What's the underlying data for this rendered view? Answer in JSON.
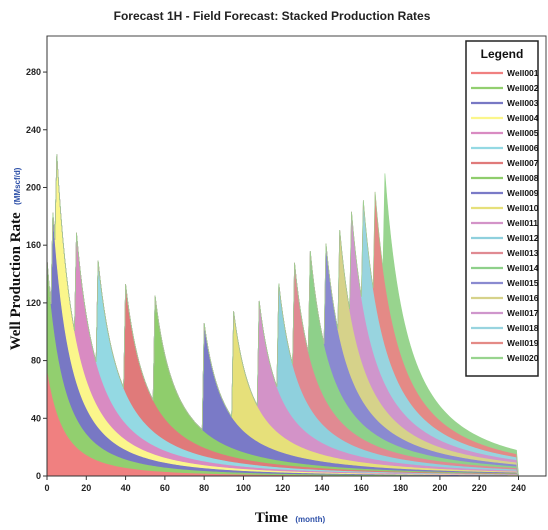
{
  "chart_data": {
    "type": "area",
    "stacked": true,
    "title": "Forecast 1H - Field Forecast: Stacked Production Rates",
    "xlabel": "Time",
    "xlabel_unit": "(month)",
    "ylabel": "Well Production Rate",
    "ylabel_unit": "(MMscf/d)",
    "xlim": [
      0,
      254
    ],
    "ylim": [
      0,
      305
    ],
    "xticks": [
      "0",
      "20",
      "40",
      "60",
      "80",
      "100",
      "120",
      "140",
      "160",
      "180",
      "200",
      "220",
      "240"
    ],
    "yticks": [
      "0",
      "40",
      "80",
      "120",
      "160",
      "200",
      "240",
      "280"
    ],
    "legend": {
      "title": "Legend",
      "position": "top-right"
    },
    "profile": {
      "peak": 75,
      "decline_per_month": 0.12,
      "hyperbolic_b": 0.45
    },
    "series": [
      {
        "name": "Well001",
        "start": 0,
        "end": 240,
        "color": "#f08080"
      },
      {
        "name": "Well002",
        "start": 0,
        "end": 240,
        "color": "#92cf6f"
      },
      {
        "name": "Well003",
        "start": 3,
        "end": 240,
        "color": "#7878c4"
      },
      {
        "name": "Well004",
        "start": 5,
        "end": 240,
        "color": "#fbf68b"
      },
      {
        "name": "Well005",
        "start": 15,
        "end": 240,
        "color": "#d98bc2"
      },
      {
        "name": "Well006",
        "start": 26,
        "end": 240,
        "color": "#94d9e3"
      },
      {
        "name": "Well007",
        "start": 40,
        "end": 240,
        "color": "#e07a7a"
      },
      {
        "name": "Well008",
        "start": 55,
        "end": 240,
        "color": "#8fcd6c"
      },
      {
        "name": "Well009",
        "start": 80,
        "end": 240,
        "color": "#7a7ac7"
      },
      {
        "name": "Well010",
        "start": 95,
        "end": 240,
        "color": "#e6e07a"
      },
      {
        "name": "Well011",
        "start": 108,
        "end": 240,
        "color": "#d393c8"
      },
      {
        "name": "Well012",
        "start": 118,
        "end": 240,
        "color": "#8fd0dd"
      },
      {
        "name": "Well013",
        "start": 126,
        "end": 240,
        "color": "#e08a92"
      },
      {
        "name": "Well014",
        "start": 134,
        "end": 240,
        "color": "#8ed08a"
      },
      {
        "name": "Well015",
        "start": 142,
        "end": 240,
        "color": "#8a8ad0"
      },
      {
        "name": "Well016",
        "start": 149,
        "end": 240,
        "color": "#d6d28a"
      },
      {
        "name": "Well017",
        "start": 155,
        "end": 240,
        "color": "#cf96cc"
      },
      {
        "name": "Well018",
        "start": 161,
        "end": 240,
        "color": "#98d4df"
      },
      {
        "name": "Well019",
        "start": 167,
        "end": 240,
        "color": "#e48a86"
      },
      {
        "name": "Well020",
        "start": 172,
        "end": 240,
        "color": "#98d48e"
      }
    ]
  }
}
